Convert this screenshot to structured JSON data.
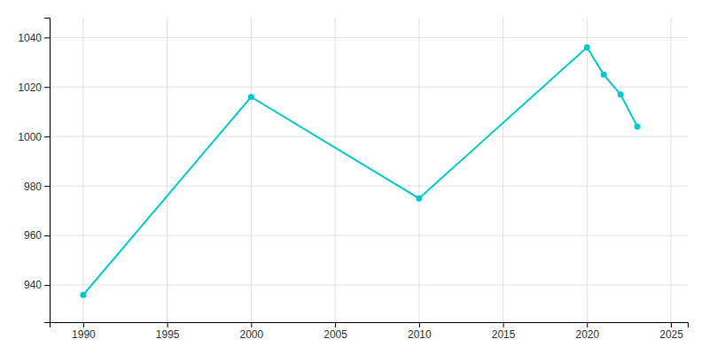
{
  "chart_data": {
    "type": "line",
    "x": [
      1990,
      2000,
      2010,
      2020,
      2021,
      2022,
      2023
    ],
    "values": [
      936,
      1016,
      975,
      1036,
      1025,
      1017,
      1004
    ],
    "color": "#00c8cc",
    "marker": "circle",
    "xlim": [
      1988,
      2026
    ],
    "ylim": [
      925,
      1048
    ],
    "xticks": [
      1990,
      1995,
      2000,
      2005,
      2010,
      2015,
      2020,
      2025
    ],
    "yticks": [
      940,
      960,
      980,
      1000,
      1020,
      1040
    ],
    "grid": true
  }
}
